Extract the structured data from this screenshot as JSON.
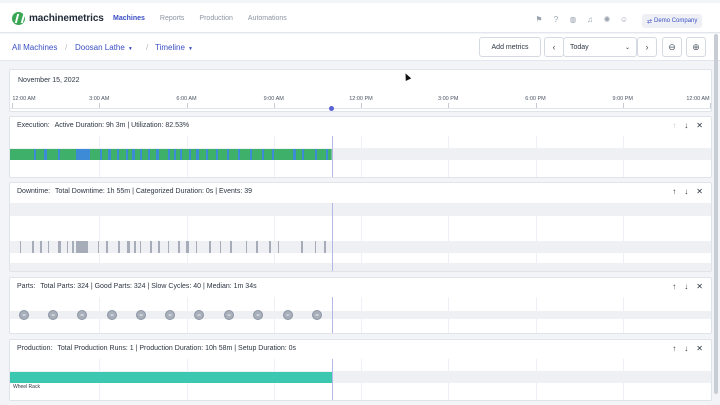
{
  "app": {
    "logo_text": "machinemetrics",
    "nav": [
      "Machines",
      "Reports",
      "Production",
      "Automations"
    ],
    "active_nav": "Machines",
    "company": "Demo Company",
    "brand_color": "#3aa655",
    "accent_color": "#3b4fc4"
  },
  "toolbar_icons": [
    "flag-icon",
    "help-icon",
    "globe-icon",
    "bell-icon",
    "settings-icon",
    "user-icon"
  ],
  "breadcrumb": {
    "all_machines": "All Machines",
    "machine": "Doosan Lathe",
    "view": "Timeline"
  },
  "controls": {
    "add_metrics": "Add metrics",
    "date_value": "Today"
  },
  "timeline": {
    "date": "November 15, 2022",
    "ticks": [
      "12:00 AM",
      "3:00 AM",
      "6:00 AM",
      "9:00 AM",
      "12:00 PM",
      "3:00 PM",
      "6:00 PM",
      "9:00 PM",
      "12:00 AM"
    ],
    "now_fraction": 0.458
  },
  "panels": {
    "execution": {
      "title": "Execution:",
      "stats": "Active Duration: 9h 3m  |  Utilization: 82.53%",
      "active_color": "#3fb06a",
      "idle_color": "#3d8ad6"
    },
    "downtime": {
      "title": "Downtime:",
      "stats": "Total Downtime: 1h 55m  |  Categorized Duration: 0s  |  Events: 39",
      "event_color": "#a7adb8"
    },
    "parts": {
      "title": "Parts:",
      "stats": "Total Parts: 324  |  Good Parts: 324  |  Slow Cycles: 40  |  Median: 1m 34s",
      "markers": [
        "35",
        "30",
        "28",
        "30",
        "30",
        "30",
        "26",
        "32",
        "30",
        "27",
        "26"
      ]
    },
    "production": {
      "title": "Production:",
      "stats": "Total Production Runs: 1  |  Production Duration: 10h 58m  |  Setup Duration: 0s",
      "run_label": "Wheel Rack",
      "run_color": "#3cc7b1"
    }
  }
}
